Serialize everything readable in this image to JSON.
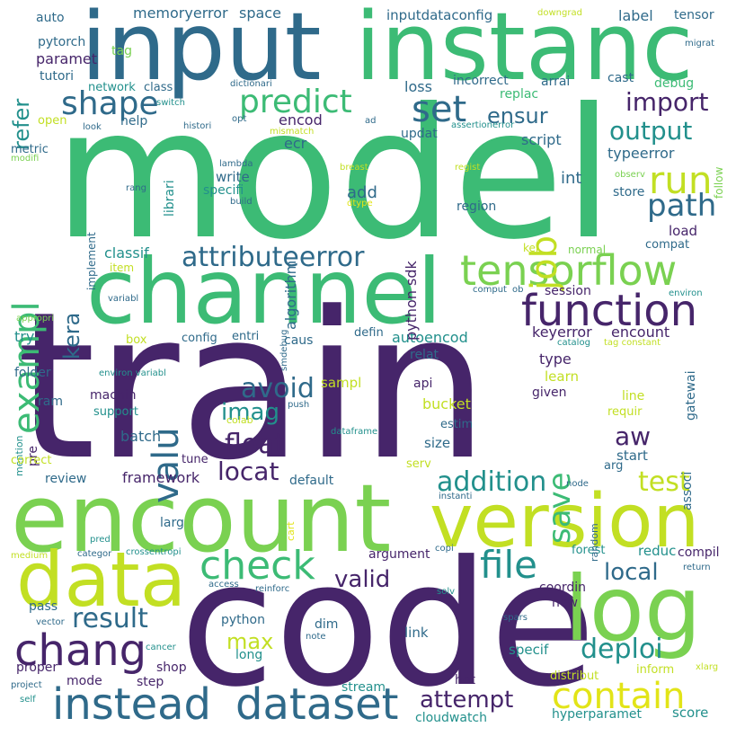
{
  "colors": {
    "background": "#ffffff",
    "dark_purple": "#46256a",
    "purple": "#3f2d74",
    "blue": "#2f6a8a",
    "teal": "#22908c",
    "green": "#3cbb75",
    "light_green": "#7ad151",
    "yellow_green": "#c2df23",
    "yellow": "#e2e418"
  },
  "words": [
    {
      "text": "train",
      "color": "#46256a"
    },
    {
      "text": "model",
      "color": "#3cbb75"
    },
    {
      "text": "code",
      "color": "#46256a"
    },
    {
      "text": "encount",
      "color": "#7ad151"
    },
    {
      "text": "channel",
      "color": "#3cbb75"
    },
    {
      "text": "input",
      "color": "#2f6a8a"
    },
    {
      "text": "instanc",
      "color": "#3cbb75"
    },
    {
      "text": "version",
      "color": "#c2df23"
    },
    {
      "text": "log",
      "color": "#7ad151"
    },
    {
      "text": "data",
      "color": "#c2df23"
    },
    {
      "text": "tensorflow",
      "color": "#7ad151"
    },
    {
      "text": "function",
      "color": "#46256a"
    },
    {
      "text": "chang",
      "color": "#46256a"
    },
    {
      "text": "instead",
      "color": "#2f6a8a"
    },
    {
      "text": "dataset",
      "color": "#2f6a8a"
    },
    {
      "text": "contain",
      "color": "#e2e418"
    },
    {
      "text": "check",
      "color": "#3cbb75"
    },
    {
      "text": "file",
      "color": "#22908c"
    },
    {
      "text": "attributeerror",
      "color": "#2f6a8a"
    },
    {
      "text": "predict",
      "color": "#3cbb75"
    },
    {
      "text": "shape",
      "color": "#2f6a8a"
    },
    {
      "text": "set",
      "color": "#2f6a8a"
    },
    {
      "text": "run",
      "color": "#c2df23"
    },
    {
      "text": "path",
      "color": "#2f6a8a"
    },
    {
      "text": "job",
      "color": "#c2df23"
    },
    {
      "text": "exampl",
      "color": "#3cbb75"
    },
    {
      "text": "valu",
      "color": "#2f6a8a"
    },
    {
      "text": "output",
      "color": "#22908c"
    },
    {
      "text": "import",
      "color": "#46256a"
    },
    {
      "text": "ensur",
      "color": "#2f6a8a"
    },
    {
      "text": "result",
      "color": "#2f6a8a"
    },
    {
      "text": "deploi",
      "color": "#22908c"
    },
    {
      "text": "test",
      "color": "#c2df23"
    },
    {
      "text": "addition",
      "color": "#22908c"
    },
    {
      "text": "float",
      "color": "#46256a"
    },
    {
      "text": "avoid",
      "color": "#2f6a8a"
    },
    {
      "text": "imag",
      "color": "#22908c"
    },
    {
      "text": "locat",
      "color": "#46256a"
    },
    {
      "text": "save",
      "color": "#3cbb75"
    },
    {
      "text": "aw",
      "color": "#46256a"
    },
    {
      "text": "max",
      "color": "#c2df23"
    },
    {
      "text": "attempt",
      "color": "#46256a"
    },
    {
      "text": "valid",
      "color": "#46256a"
    },
    {
      "text": "local",
      "color": "#2f6a8a"
    },
    {
      "text": "kera",
      "color": "#2f6a8a"
    },
    {
      "text": "refer",
      "color": "#22908c"
    },
    {
      "text": "memoryerror",
      "color": "#2f6a8a"
    },
    {
      "text": "space",
      "color": "#2f6a8a"
    },
    {
      "text": "inputdataconfig",
      "color": "#2f6a8a"
    },
    {
      "text": "label",
      "color": "#2f6a8a"
    },
    {
      "text": "tensor",
      "color": "#2f6a8a"
    },
    {
      "text": "auto",
      "color": "#2f6a8a"
    },
    {
      "text": "pytorch",
      "color": "#2f6a8a"
    },
    {
      "text": "tag",
      "color": "#7ad151"
    },
    {
      "text": "paramet",
      "color": "#46256a"
    },
    {
      "text": "tutori",
      "color": "#2f6a8a"
    },
    {
      "text": "network",
      "color": "#22908c"
    },
    {
      "text": "class",
      "color": "#2f6a8a"
    },
    {
      "text": "loss",
      "color": "#2f6a8a"
    },
    {
      "text": "incorrect",
      "color": "#2f6a8a"
    },
    {
      "text": "arrai",
      "color": "#2f6a8a"
    },
    {
      "text": "cast",
      "color": "#2f6a8a"
    },
    {
      "text": "replac",
      "color": "#3cbb75"
    },
    {
      "text": "debug",
      "color": "#3cbb75"
    },
    {
      "text": "help",
      "color": "#2f6a8a"
    },
    {
      "text": "encod",
      "color": "#46256a"
    },
    {
      "text": "updat",
      "color": "#2f6a8a"
    },
    {
      "text": "script",
      "color": "#2f6a8a"
    },
    {
      "text": "ecr",
      "color": "#2f6a8a"
    },
    {
      "text": "typeerror",
      "color": "#2f6a8a"
    },
    {
      "text": "int",
      "color": "#2f6a8a"
    },
    {
      "text": "store",
      "color": "#2f6a8a"
    },
    {
      "text": "write",
      "color": "#2f6a8a"
    },
    {
      "text": "specifi",
      "color": "#22908c"
    },
    {
      "text": "add",
      "color": "#2f6a8a"
    },
    {
      "text": "region",
      "color": "#2f6a8a"
    },
    {
      "text": "load",
      "color": "#46256a"
    },
    {
      "text": "compat",
      "color": "#2f6a8a"
    },
    {
      "text": "classif",
      "color": "#22908c"
    },
    {
      "text": "session",
      "color": "#46256a"
    },
    {
      "text": "keyerror",
      "color": "#46256a"
    },
    {
      "text": "encount",
      "color": "#46256a"
    },
    {
      "text": "autoencod",
      "color": "#22908c"
    },
    {
      "text": "config",
      "color": "#2f6a8a"
    },
    {
      "text": "entri",
      "color": "#2f6a8a"
    },
    {
      "text": "caus",
      "color": "#2f6a8a"
    },
    {
      "text": "defin",
      "color": "#2f6a8a"
    },
    {
      "text": "try",
      "color": "#22908c"
    },
    {
      "text": "folder",
      "color": "#2f6a8a"
    },
    {
      "text": "ram",
      "color": "#2f6a8a"
    },
    {
      "text": "machin",
      "color": "#46256a"
    },
    {
      "text": "support",
      "color": "#22908c"
    },
    {
      "text": "batch",
      "color": "#2f6a8a"
    },
    {
      "text": "sampl",
      "color": "#c2df23"
    },
    {
      "text": "relat",
      "color": "#2f6a8a"
    },
    {
      "text": "type",
      "color": "#46256a"
    },
    {
      "text": "learn",
      "color": "#c2df23"
    },
    {
      "text": "api",
      "color": "#46256a"
    },
    {
      "text": "given",
      "color": "#46256a"
    },
    {
      "text": "bucket",
      "color": "#c2df23"
    },
    {
      "text": "estim",
      "color": "#2f6a8a"
    },
    {
      "text": "size",
      "color": "#2f6a8a"
    },
    {
      "text": "start",
      "color": "#2f6a8a"
    },
    {
      "text": "arg",
      "color": "#2f6a8a"
    },
    {
      "text": "review",
      "color": "#2f6a8a"
    },
    {
      "text": "framework",
      "color": "#46256a"
    },
    {
      "text": "default",
      "color": "#2f6a8a"
    },
    {
      "text": "tune",
      "color": "#46256a"
    },
    {
      "text": "larg",
      "color": "#2f6a8a"
    },
    {
      "text": "argument",
      "color": "#46256a"
    },
    {
      "text": "coordin",
      "color": "#46256a"
    },
    {
      "text": "new",
      "color": "#46256a"
    },
    {
      "text": "reduc",
      "color": "#22908c"
    },
    {
      "text": "compil",
      "color": "#46256a"
    },
    {
      "text": "forest",
      "color": "#22908c"
    },
    {
      "text": "pass",
      "color": "#2f6a8a"
    },
    {
      "text": "python",
      "color": "#2f6a8a"
    },
    {
      "text": "dim",
      "color": "#2f6a8a"
    },
    {
      "text": "link",
      "color": "#2f6a8a"
    },
    {
      "text": "long",
      "color": "#22908c"
    },
    {
      "text": "shop",
      "color": "#46256a"
    },
    {
      "text": "mode",
      "color": "#46256a"
    },
    {
      "text": "step",
      "color": "#46256a"
    },
    {
      "text": "stream",
      "color": "#22908c"
    },
    {
      "text": "hot",
      "color": "#46256a"
    },
    {
      "text": "specif",
      "color": "#22908c"
    },
    {
      "text": "distribut",
      "color": "#c2df23"
    },
    {
      "text": "inform",
      "color": "#c2df23"
    },
    {
      "text": "score",
      "color": "#22908c"
    },
    {
      "text": "hyperparamet",
      "color": "#22908c"
    },
    {
      "text": "cloudwatch",
      "color": "#22908c"
    },
    {
      "text": "proper",
      "color": "#46256a"
    },
    {
      "text": "pre",
      "color": "#46256a"
    },
    {
      "text": "algorithm",
      "color": "#2f6a8a"
    },
    {
      "text": "python sdk",
      "color": "#46256a"
    },
    {
      "text": "librari",
      "color": "#22908c"
    },
    {
      "text": "implement",
      "color": "#2f6a8a"
    },
    {
      "text": "metric",
      "color": "#2f6a8a"
    },
    {
      "text": "modifi",
      "color": "#7ad151"
    },
    {
      "text": "open",
      "color": "#c2df23"
    },
    {
      "text": "look",
      "color": "#2f6a8a"
    },
    {
      "text": "histori",
      "color": "#2f6a8a"
    },
    {
      "text": "opt",
      "color": "#2f6a8a"
    },
    {
      "text": "ad",
      "color": "#2f6a8a"
    },
    {
      "text": "mismatch",
      "color": "#c2df23"
    },
    {
      "text": "assertionerror",
      "color": "#22908c"
    },
    {
      "text": "follow",
      "color": "#7ad151"
    },
    {
      "text": "observ",
      "color": "#7ad151"
    },
    {
      "text": "regist",
      "color": "#c2df23"
    },
    {
      "text": "breast",
      "color": "#c2df23"
    },
    {
      "text": "lambda",
      "color": "#2f6a8a"
    },
    {
      "text": "build",
      "color": "#2f6a8a"
    },
    {
      "text": "dtype",
      "color": "#e2e418"
    },
    {
      "text": "rang",
      "color": "#2f6a8a"
    },
    {
      "text": "item",
      "color": "#c2df23"
    },
    {
      "text": "kei",
      "color": "#c2df23"
    },
    {
      "text": "normal",
      "color": "#7ad151"
    },
    {
      "text": "comput",
      "color": "#2f6a8a"
    },
    {
      "text": "ob",
      "color": "#2f6a8a"
    },
    {
      "text": "environ",
      "color": "#22908c"
    },
    {
      "text": "variabl",
      "color": "#2f6a8a"
    },
    {
      "text": "smdebug",
      "color": "#2f6a8a"
    },
    {
      "text": "appropri",
      "color": "#7ad151"
    },
    {
      "text": "box",
      "color": "#c2df23"
    },
    {
      "text": "gatewai",
      "color": "#2f6a8a"
    },
    {
      "text": "associ",
      "color": "#2f6a8a"
    },
    {
      "text": "catalog",
      "color": "#22908c"
    },
    {
      "text": "tag constant",
      "color": "#c2df23"
    },
    {
      "text": "environ variabl",
      "color": "#22908c"
    },
    {
      "text": "line",
      "color": "#c2df23"
    },
    {
      "text": "requir",
      "color": "#c2df23"
    },
    {
      "text": "colab",
      "color": "#c2df23"
    },
    {
      "text": "push",
      "color": "#2f6a8a"
    },
    {
      "text": "dataframe",
      "color": "#22908c"
    },
    {
      "text": "mention",
      "color": "#22908c"
    },
    {
      "text": "correct",
      "color": "#c2df23"
    },
    {
      "text": "serv",
      "color": "#c2df23"
    },
    {
      "text": "cart",
      "color": "#e2e418"
    },
    {
      "text": "instanti",
      "color": "#2f6a8a"
    },
    {
      "text": "random",
      "color": "#2f6a8a"
    },
    {
      "text": "node",
      "color": "#2f6a8a"
    },
    {
      "text": "pred",
      "color": "#22908c"
    },
    {
      "text": "categor",
      "color": "#2f6a8a"
    },
    {
      "text": "crossentropi",
      "color": "#22908c"
    },
    {
      "text": "medium",
      "color": "#c2df23"
    },
    {
      "text": "copi",
      "color": "#2f6a8a"
    },
    {
      "text": "return",
      "color": "#2f6a8a"
    },
    {
      "text": "access",
      "color": "#2f6a8a"
    },
    {
      "text": "reinforc",
      "color": "#2f6a8a"
    },
    {
      "text": "solv",
      "color": "#22908c"
    },
    {
      "text": "vector",
      "color": "#2f6a8a"
    },
    {
      "text": "spars",
      "color": "#2f6a8a"
    },
    {
      "text": "note",
      "color": "#2f6a8a"
    },
    {
      "text": "cancer",
      "color": "#22908c"
    },
    {
      "text": "project",
      "color": "#2f6a8a"
    },
    {
      "text": "xlarg",
      "color": "#c2df23"
    },
    {
      "text": "self",
      "color": "#22908c"
    },
    {
      "text": "switch",
      "color": "#22908c"
    },
    {
      "text": "dictionari",
      "color": "#2f6a8a"
    },
    {
      "text": "downgrad",
      "color": "#c2df23"
    },
    {
      "text": "migrat",
      "color": "#2f6a8a"
    }
  ]
}
